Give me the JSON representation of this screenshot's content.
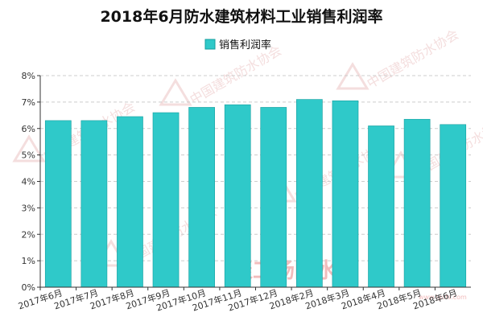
{
  "chart_data": {
    "type": "bar",
    "title": "2018年6月防水建筑材料工业销售利润率",
    "categories": [
      "2017年6月",
      "2017年7月",
      "2017年8月",
      "2017年9月",
      "2017年10月",
      "2017年11月",
      "2017年12月",
      "2018年2月",
      "2018年3月",
      "2018年4月",
      "2018年5月",
      "2018年6月"
    ],
    "series": [
      {
        "name": "销售利润率",
        "values": [
          6.3,
          6.3,
          6.45,
          6.6,
          6.8,
          6.9,
          6.8,
          7.1,
          7.05,
          6.1,
          6.35,
          6.15
        ]
      }
    ],
    "ylim": [
      0,
      8
    ],
    "yticks": [
      "0%",
      "1%",
      "2%",
      "3%",
      "4%",
      "5%",
      "6%",
      "7%",
      "8%"
    ],
    "grid": true,
    "legend_position": "top",
    "colors": {
      "bar": "#2fc9c9",
      "bar_edge": "#159e9e",
      "grid": "#cccccc",
      "axis": "#333333"
    },
    "watermark": {
      "text": "聚工场防水网",
      "repeat_text": "中国建筑防水协会",
      "url": "www.jgcfs.com",
      "color": "#e0a0a0"
    }
  }
}
